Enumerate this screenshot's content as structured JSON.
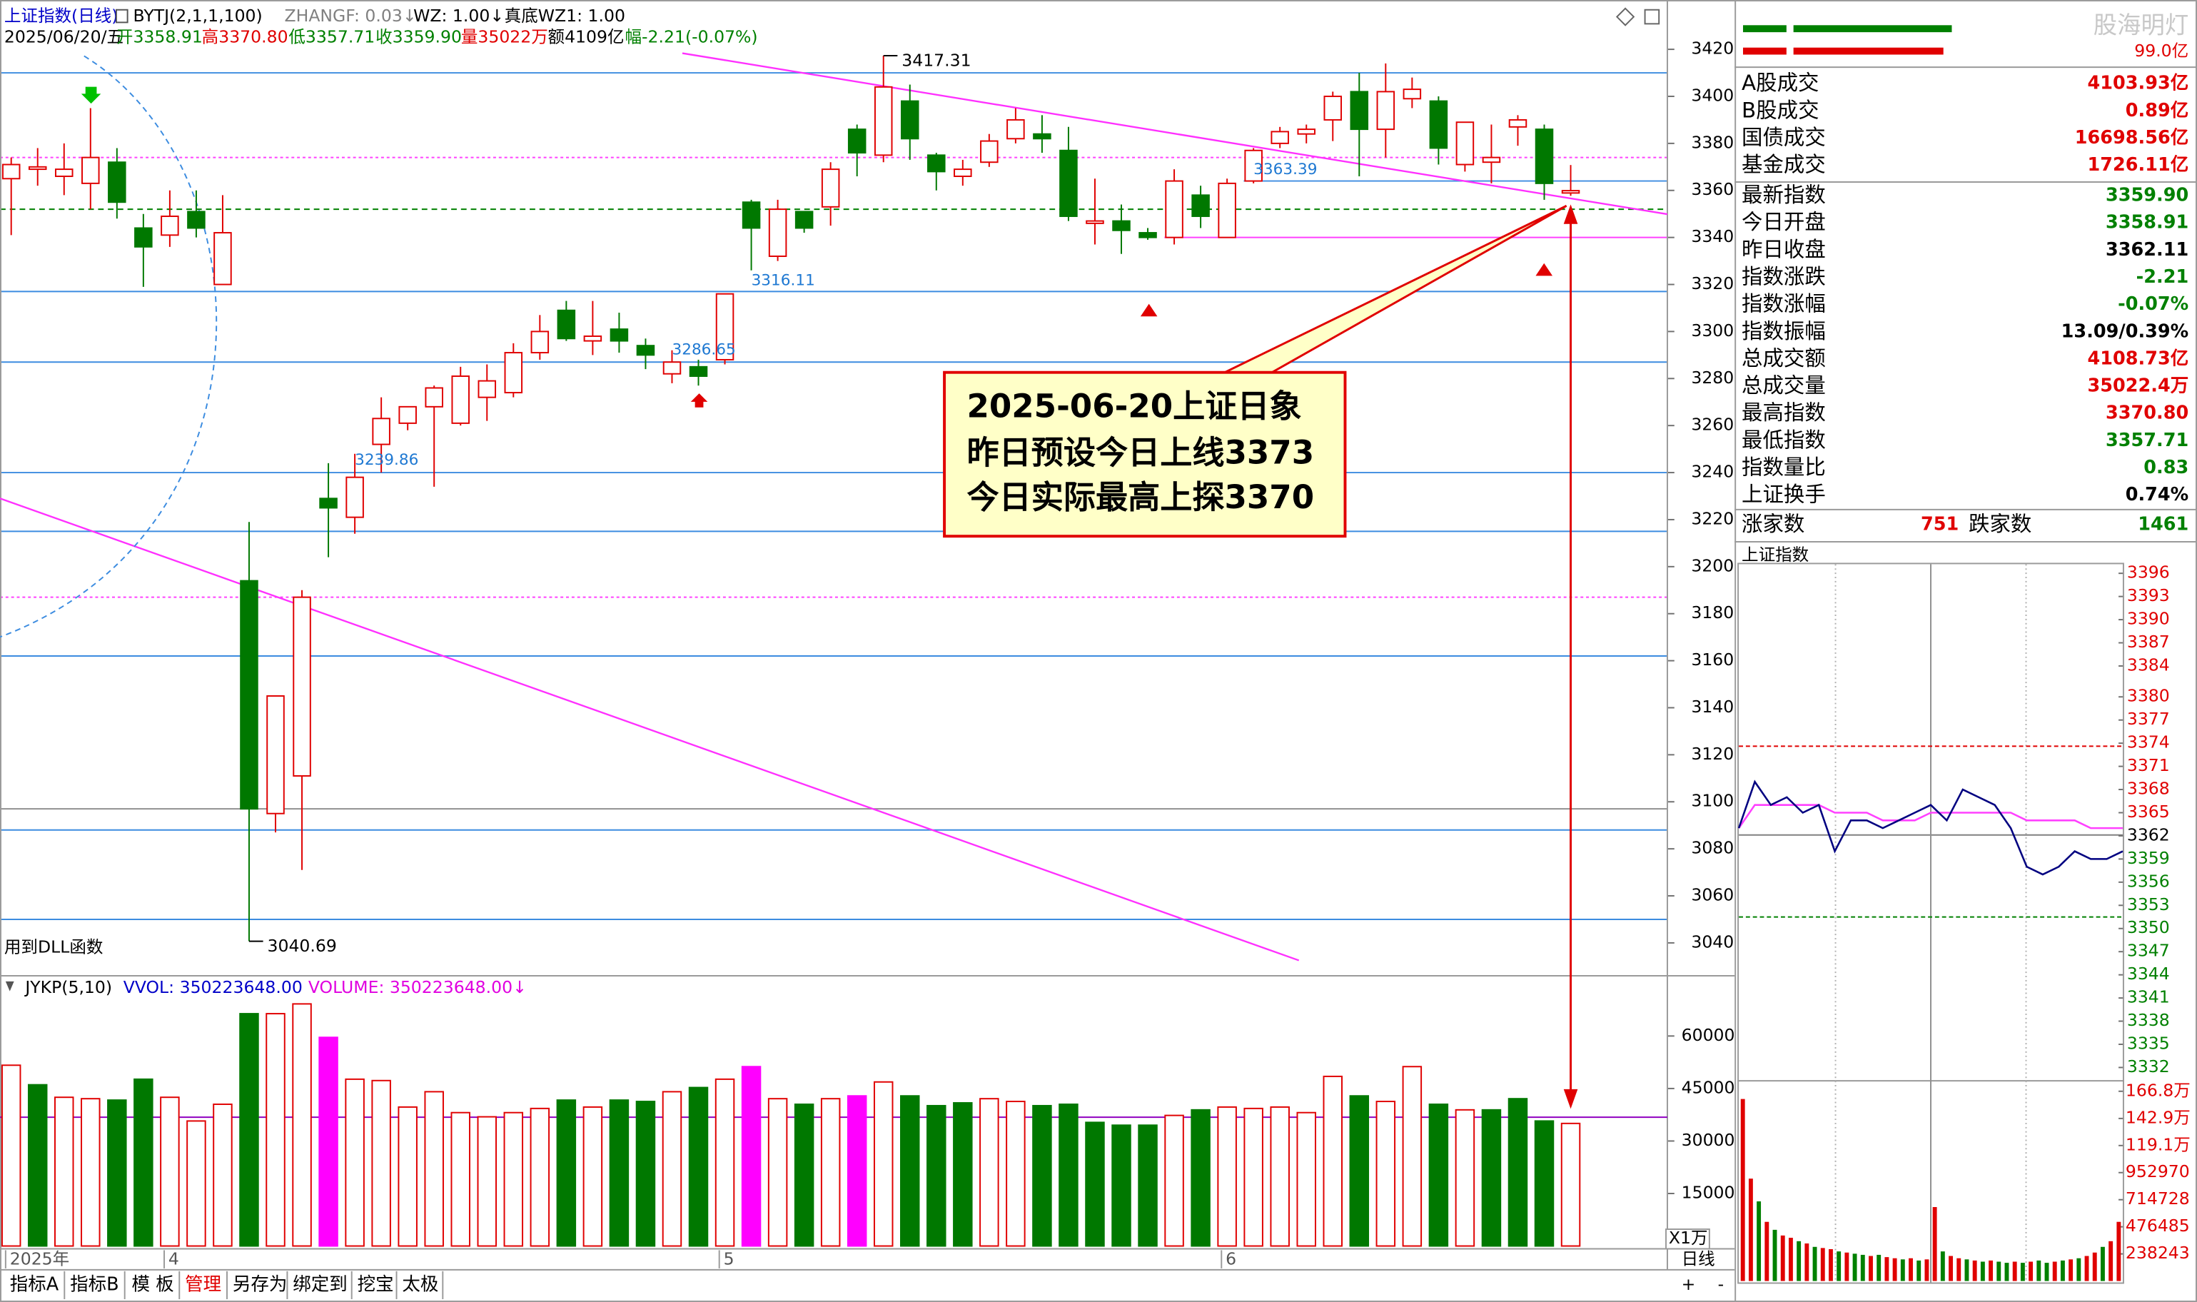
{
  "header": {
    "title": "上证指数(日线)",
    "indicator": "BYTJ(2,1,1,100)",
    "zhangf": "ZHANGF: 0.03↓",
    "wz": "WZ: 1.00↓",
    "wz1": "真底WZ1: 1.00",
    "date": "2025/06/20/五",
    "open": "开3358.91",
    "high": "高3370.80",
    "low": "低3357.71",
    "close": "收3359.90",
    "volume": "量35022万",
    "amount": "额4109亿",
    "change": "幅-2.21(-0.07%)"
  },
  "dll_note": "用到DLL函数",
  "callout": [
    "2025-06-20上证日象",
    "昨日预设今日上线3373",
    "今日实际最高上探3370"
  ],
  "volume_header": {
    "name": "JYKP(5,10)",
    "vvol": "VVOL: 350223648.00",
    "volume": "VOLUME: 350223648.00↓"
  },
  "unit_label": "X1万",
  "period": "日线",
  "zoom": [
    "+",
    "-"
  ],
  "tabs": [
    "指标A",
    "指标B",
    "模 板",
    "管理",
    "另存为",
    "绑定到",
    "挖宝",
    "太极"
  ],
  "watermark": "股海明灯",
  "ratio_value": "99.0亿",
  "stats": {
    "turnover": [
      {
        "label": "A股成交",
        "value": "4103.93亿",
        "color": "#e00000"
      },
      {
        "label": "B股成交",
        "value": "0.89亿",
        "color": "#e00000"
      },
      {
        "label": "国债成交",
        "value": "16698.56亿",
        "color": "#e00000"
      },
      {
        "label": "基金成交",
        "value": "1726.11亿",
        "color": "#e00000"
      }
    ],
    "index": [
      {
        "label": "最新指数",
        "value": "3359.90",
        "color": "#008000"
      },
      {
        "label": "今日开盘",
        "value": "3358.91",
        "color": "#008000"
      },
      {
        "label": "昨日收盘",
        "value": "3362.11",
        "color": "#000000"
      },
      {
        "label": "指数涨跌",
        "value": "-2.21",
        "color": "#008000"
      },
      {
        "label": "指数涨幅",
        "value": "-0.07%",
        "color": "#008000"
      },
      {
        "label": "指数振幅",
        "value": "13.09/0.39%",
        "color": "#000000"
      },
      {
        "label": "总成交额",
        "value": "4108.73亿",
        "color": "#e00000"
      },
      {
        "label": "总成交量",
        "value": "35022.4万",
        "color": "#e00000"
      },
      {
        "label": "最高指数",
        "value": "3370.80",
        "color": "#e00000"
      },
      {
        "label": "最低指数",
        "value": "3357.71",
        "color": "#008000"
      },
      {
        "label": "指数量比",
        "value": "0.83",
        "color": "#008000"
      },
      {
        "label": "上证换手",
        "value": "0.74%",
        "color": "#000000"
      }
    ],
    "up_label": "涨家数",
    "up": "751",
    "down_label": "跌家数",
    "down": "1461"
  },
  "intraday_title": "上证指数",
  "chart_data": [
    {
      "type": "candlestick",
      "up_color": "#e00000",
      "down_color": "#007800",
      "open": [
        3365,
        3369,
        3366,
        3363,
        3372,
        3344,
        3341,
        3351,
        3320,
        3194,
        3095,
        3111,
        3229,
        3221,
        3252,
        3261,
        3268,
        3261,
        3272,
        3274,
        3291,
        3309,
        3296,
        3301,
        3294,
        3282,
        3285,
        3288,
        3355,
        3332,
        3351,
        3353,
        3386,
        3375,
        3398,
        3375,
        3366,
        3372,
        3382,
        3384,
        3377,
        3346,
        3347,
        3342,
        3340,
        3358,
        3340,
        3364,
        3380,
        3384,
        3390,
        3402,
        3386,
        3399,
        3398,
        3371,
        3372,
        3387,
        3386,
        3358.91
      ],
      "high": [
        3374,
        3378,
        3380,
        3395,
        3378,
        3350,
        3360,
        3360,
        3358,
        3219,
        3145,
        3190,
        3244,
        3248,
        3272,
        3268,
        3277,
        3285,
        3286,
        3295,
        3307,
        3313,
        3313,
        3308,
        3297,
        3292,
        3288,
        3316,
        3356,
        3356,
        3351,
        3372,
        3388,
        3417.31,
        3405,
        3376,
        3373,
        3384,
        3395,
        3392,
        3387,
        3365,
        3354,
        3344,
        3369,
        3362,
        3365,
        3378,
        3387,
        3388,
        3402,
        3410,
        3414,
        3408,
        3400,
        3389,
        3388,
        3392,
        3388,
        3370.8
      ],
      "low": [
        3341,
        3362,
        3358,
        3352,
        3348,
        3319,
        3336,
        3340,
        3320,
        3040.69,
        3087,
        3071,
        3204,
        3214,
        3240,
        3258,
        3234,
        3260,
        3262,
        3272,
        3288,
        3296,
        3290,
        3291,
        3284,
        3278,
        3277,
        3286,
        3326,
        3330,
        3342,
        3345,
        3366,
        3372,
        3373,
        3360,
        3362,
        3370,
        3380,
        3376,
        3347,
        3337,
        3333,
        3339,
        3337,
        3344,
        3340,
        3363,
        3378,
        3380,
        3381,
        3366,
        3374,
        3395,
        3371,
        3368,
        3363,
        3379,
        3356,
        3357.71
      ],
      "close": [
        3371,
        3370,
        3369,
        3374,
        3355,
        3336,
        3349,
        3344,
        3342,
        3097,
        3145,
        3187,
        3225,
        3238,
        3263,
        3268,
        3276,
        3281,
        3279,
        3291,
        3300,
        3297,
        3298,
        3296,
        3290,
        3287,
        3281,
        3316,
        3344,
        3352,
        3344,
        3369,
        3376,
        3404,
        3382,
        3368,
        3369,
        3381,
        3390,
        3382,
        3349,
        3347,
        3343,
        3340,
        3364,
        3349,
        3363,
        3377,
        3385,
        3386,
        3400,
        3386,
        3402,
        3403,
        3378,
        3389,
        3374,
        3390,
        3363,
        3359.9
      ],
      "ylim": [
        3026,
        3438
      ],
      "yticks": [
        3040,
        3060,
        3080,
        3100,
        3120,
        3140,
        3160,
        3180,
        3200,
        3220,
        3240,
        3260,
        3280,
        3300,
        3320,
        3340,
        3360,
        3380,
        3400,
        3420
      ],
      "levels": [
        {
          "value": 3410,
          "color": "#3c8ce0"
        },
        {
          "value": 3374,
          "color": "#ff40ff",
          "dash": "2,2"
        },
        {
          "value": 3364,
          "color": "#3c8ce0",
          "from": 47
        },
        {
          "value": 3352,
          "color": "#008000",
          "dash": "4,3"
        },
        {
          "value": 3340,
          "color": "#ff40ff",
          "from": 44
        },
        {
          "value": 3317,
          "color": "#3c8ce0"
        },
        {
          "value": 3287,
          "color": "#3c8ce0"
        },
        {
          "value": 3240,
          "color": "#3c8ce0"
        },
        {
          "value": 3215,
          "color": "#3c8ce0"
        },
        {
          "value": 3187,
          "color": "#ff40ff",
          "dash": "2,2"
        },
        {
          "value": 3162,
          "color": "#3c8ce0"
        },
        {
          "value": 3097,
          "color": "#909090"
        },
        {
          "value": 3088,
          "color": "#3c8ce0"
        },
        {
          "value": 3050,
          "color": "#3c8ce0"
        }
      ],
      "annotations": [
        {
          "index": 33,
          "value": 3417.31,
          "kind": "extreme"
        },
        {
          "index": 9,
          "value": 3040.69,
          "kind": "extreme"
        },
        {
          "index": 47,
          "value": 3363.39,
          "kind": "level"
        },
        {
          "index": 28,
          "value": 3316.11,
          "kind": "level"
        },
        {
          "index": 25,
          "value": 3286.65,
          "kind": "level"
        },
        {
          "index": 13,
          "value": 3239.86,
          "kind": "level"
        }
      ]
    },
    {
      "type": "bar",
      "categories": [
        "2025年",
        null,
        null,
        null,
        null,
        null,
        "4",
        null,
        null,
        null,
        null,
        null,
        null,
        null,
        null,
        null,
        null,
        null,
        null,
        null,
        null,
        null,
        null,
        null,
        null,
        null,
        null,
        "5",
        null,
        null,
        null,
        null,
        null,
        null,
        null,
        null,
        null,
        null,
        null,
        null,
        null,
        null,
        null,
        null,
        null,
        null,
        "6",
        null,
        null,
        null,
        null,
        null,
        null,
        null,
        null,
        null,
        null,
        null,
        null,
        null
      ],
      "values": [
        51650,
        46070,
        42490,
        42090,
        41690,
        47660,
        42490,
        35720,
        40500,
        66380,
        66380,
        69170,
        59610,
        47660,
        47270,
        39700,
        44080,
        38110,
        36910,
        38110,
        39300,
        41690,
        39700,
        41690,
        41300,
        44080,
        45280,
        47660,
        51250,
        42090,
        40500,
        42090,
        42890,
        46870,
        42890,
        40100,
        40900,
        42090,
        41300,
        40100,
        40500,
        35320,
        34520,
        34520,
        37310,
        38900,
        39700,
        39300,
        39700,
        38110,
        48460,
        42890,
        41300,
        51250,
        40500,
        38900,
        38900,
        42090,
        35720,
        35022
      ],
      "colors": [
        "#e00000",
        "#007800",
        "#e00000",
        "#e00000",
        "#007800",
        "#007800",
        "#e00000",
        "#e00000",
        "#e00000",
        "#007800",
        "#e00000",
        "#e00000",
        "#ff00ff",
        "#e00000",
        "#e00000",
        "#e00000",
        "#e00000",
        "#e00000",
        "#e00000",
        "#e00000",
        "#e00000",
        "#007800",
        "#e00000",
        "#007800",
        "#007800",
        "#e00000",
        "#007800",
        "#e00000",
        "#ff00ff",
        "#e00000",
        "#007800",
        "#e00000",
        "#ff00ff",
        "#e00000",
        "#007800",
        "#007800",
        "#007800",
        "#e00000",
        "#e00000",
        "#007800",
        "#007800",
        "#007800",
        "#007800",
        "#007800",
        "#e00000",
        "#007800",
        "#e00000",
        "#e00000",
        "#e00000",
        "#e00000",
        "#e00000",
        "#007800",
        "#e00000",
        "#e00000",
        "#007800",
        "#e00000",
        "#007800",
        "#007800",
        "#007800",
        "#e00000"
      ],
      "ylim": [
        0,
        76000
      ],
      "yticks": [
        15000,
        30000,
        45000,
        60000
      ]
    },
    {
      "type": "line",
      "x": [
        0,
        10,
        20,
        30,
        40,
        50,
        60,
        70,
        80,
        90,
        100,
        110,
        120,
        130,
        140,
        150,
        160,
        170,
        180,
        190,
        200,
        210,
        220,
        230,
        240
      ],
      "xlim": [
        0,
        240
      ],
      "series": [
        {
          "color": "#ff40ff",
          "values": [
            3363,
            3366,
            3366,
            3366,
            3366,
            3366,
            3365,
            3365,
            3365,
            3364,
            3364,
            3364,
            3365,
            3365,
            3365,
            3365,
            3365,
            3365,
            3364,
            3364,
            3364,
            3364,
            3363,
            3363,
            3363
          ]
        },
        {
          "color": "#000080",
          "values": [
            3363,
            3369,
            3366,
            3367,
            3365,
            3366,
            3360,
            3364,
            3364,
            3363,
            3364,
            3365,
            3366,
            3364,
            3368,
            3367,
            3366,
            3363,
            3358,
            3357,
            3358,
            3360,
            3359,
            3359,
            3360
          ]
        }
      ],
      "base": 3362.11,
      "ylim": [
        3331,
        3397
      ],
      "yticks": [
        3396,
        3393,
        3390,
        3387,
        3384,
        3380,
        3377,
        3374,
        3371,
        3368,
        3365,
        3362,
        3359,
        3356,
        3353,
        3350,
        3347,
        3344,
        3341,
        3338,
        3335,
        3332
      ]
    },
    {
      "type": "bar",
      "values": [
        1600000,
        900000,
        700000,
        520000,
        450000,
        400000,
        380000,
        350000,
        330000,
        300000,
        290000,
        280000,
        260000,
        250000,
        240000,
        230000,
        220000,
        230000,
        210000,
        200000,
        190000,
        200000,
        180000,
        190000,
        650000,
        260000,
        220000,
        200000,
        190000,
        180000,
        170000,
        180000,
        170000,
        160000,
        170000,
        160000,
        170000,
        180000,
        160000,
        170000,
        180000,
        190000,
        200000,
        220000,
        250000,
        300000,
        350000,
        520000
      ],
      "colors": [
        "#e00000",
        "#e00000",
        "#008000",
        "#e00000",
        "#008000",
        "#e00000",
        "#e00000",
        "#008000",
        "#e00000",
        "#008000",
        "#e00000",
        "#e00000",
        "#008000",
        "#e00000",
        "#008000",
        "#008000",
        "#e00000",
        "#008000",
        "#e00000",
        "#e00000",
        "#008000",
        "#e00000",
        "#008000",
        "#e00000",
        "#e00000",
        "#008000",
        "#e00000",
        "#e00000",
        "#008000",
        "#e00000",
        "#008000",
        "#e00000",
        "#008000",
        "#008000",
        "#e00000",
        "#008000",
        "#e00000",
        "#008000",
        "#008000",
        "#e00000",
        "#008000",
        "#e00000",
        "#008000",
        "#e00000",
        "#e00000",
        "#008000",
        "#e00000",
        "#e00000"
      ],
      "ylim": [
        0,
        1760000
      ],
      "yticks": [
        {
          "value": 1668000,
          "label": "166.8万"
        },
        {
          "value": 1429000,
          "label": "142.9万"
        },
        {
          "value": 1191000,
          "label": "119.1万"
        },
        952970,
        714728,
        476485,
        238243
      ]
    }
  ]
}
